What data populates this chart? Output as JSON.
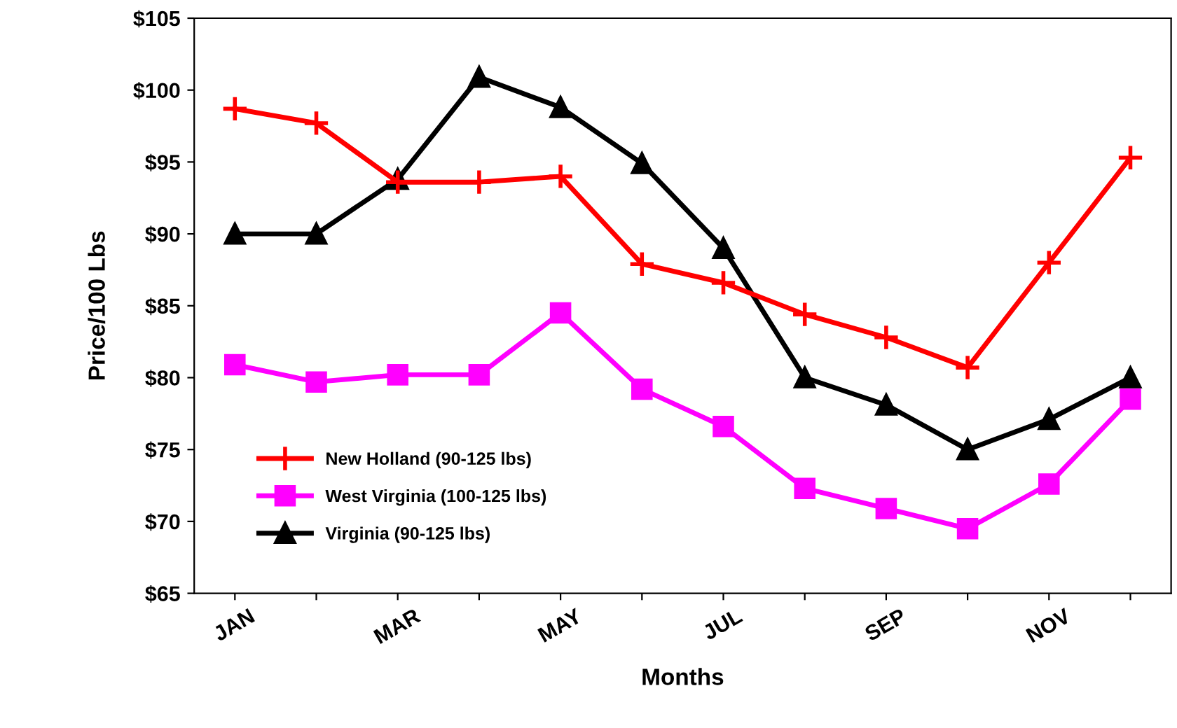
{
  "chart_data": {
    "type": "line",
    "xlabel": "Months",
    "ylabel": "Price/100 Lbs",
    "categories": [
      "JAN",
      null,
      "MAR",
      null,
      "MAY",
      null,
      "JUL",
      null,
      "SEP",
      null,
      "NOV",
      null
    ],
    "ylim": [
      65,
      105
    ],
    "yticks": [
      {
        "value": 65,
        "label": "$65"
      },
      {
        "value": 70,
        "label": "$70"
      },
      {
        "value": 75,
        "label": "$75"
      },
      {
        "value": 80,
        "label": "$80"
      },
      {
        "value": 85,
        "label": "$85"
      },
      {
        "value": 90,
        "label": "$90"
      },
      {
        "value": 95,
        "label": "$95"
      },
      {
        "value": 100,
        "label": "$100"
      },
      {
        "value": 105,
        "label": "$105"
      }
    ],
    "grid": false,
    "legend": "bottom left",
    "line_style": "solid",
    "series": [
      {
        "name": "New Holland (90-125 lbs)",
        "color": "#ff0000",
        "marker": "cross",
        "values": [
          98.7,
          97.7,
          93.6,
          93.6,
          94.0,
          87.9,
          86.6,
          84.4,
          82.8,
          80.7,
          88.0,
          95.3
        ]
      },
      {
        "name": "West Virginia (100-125 lbs)",
        "color": "#ff00ff",
        "marker": "square",
        "values": [
          80.9,
          79.7,
          80.2,
          80.2,
          84.5,
          79.2,
          76.6,
          72.3,
          70.9,
          69.5,
          72.6,
          78.5
        ]
      },
      {
        "name": "Virginia (90-125 lbs)",
        "color": "#000000",
        "marker": "triangle",
        "values": [
          90.0,
          90.0,
          93.8,
          100.9,
          98.8,
          94.9,
          89.0,
          80.0,
          78.1,
          75.0,
          77.1,
          80.0
        ]
      }
    ]
  }
}
